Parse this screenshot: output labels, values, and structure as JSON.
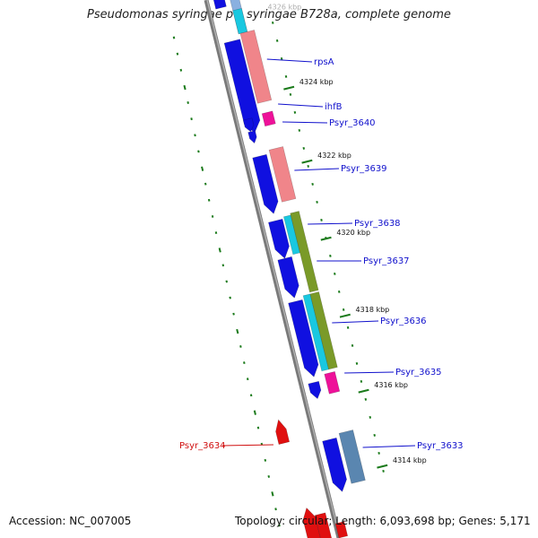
{
  "header": {
    "title": "Pseudomonas syringae pv. syringae B728a, complete genome"
  },
  "footer": {
    "accession": "Accession: NC_007005",
    "summary": "Topology: circular; Length: 6,093,698 bp; Genes: 5,171"
  },
  "colors": {
    "backbone": "#7a7a7a",
    "forward_cds": "#1010e0",
    "reverse_cds": "#e01010",
    "function_pink": "#f0858a",
    "function_magenta": "#ee1199",
    "function_cyan": "#19c8e0",
    "function_olive": "#7a9a28",
    "function_steelblue": "#5a86b0",
    "gene_label": "#1010cc",
    "tick": "#1a7a1a"
  },
  "ticks": [
    {
      "label": "4324 kbp"
    },
    {
      "label": "4322 kbp"
    },
    {
      "label": "4320 kbp"
    },
    {
      "label": "4318 kbp"
    },
    {
      "label": "4316 kbp"
    },
    {
      "label": "4314 kbp"
    }
  ],
  "faded_tick": "4326 kbp",
  "gene_labels": [
    {
      "name": "rpsA",
      "strand": "forward"
    },
    {
      "name": "ihfB",
      "strand": "forward"
    },
    {
      "name": "Psyr_3640",
      "strand": "forward"
    },
    {
      "name": "Psyr_3639",
      "strand": "forward"
    },
    {
      "name": "Psyr_3638",
      "strand": "forward"
    },
    {
      "name": "Psyr_3637",
      "strand": "forward"
    },
    {
      "name": "Psyr_3636",
      "strand": "forward"
    },
    {
      "name": "Psyr_3635",
      "strand": "forward"
    },
    {
      "name": "Psyr_3634",
      "strand": "reverse"
    },
    {
      "name": "Psyr_3633",
      "strand": "forward"
    }
  ]
}
